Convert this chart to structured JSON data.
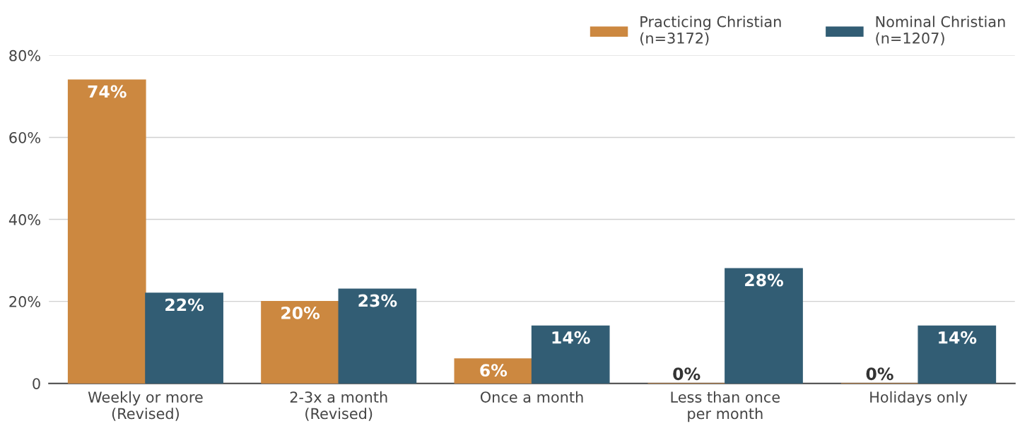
{
  "chart_data": {
    "type": "bar",
    "categories": [
      "Weekly or more\n(Revised)",
      "2-3x a month\n(Revised)",
      "Once a month",
      "Less than once\nper month",
      "Holidays only"
    ],
    "series": [
      {
        "name": "Practicing Christian\n(n=3172)",
        "color": "#cc8840",
        "values": [
          74,
          20,
          6,
          0,
          0
        ],
        "value_labels": [
          "74%",
          "20%",
          "6%",
          "0%",
          "0%"
        ]
      },
      {
        "name": "Nominal Christian\n(n=1207)",
        "color": "#325d74",
        "values": [
          22,
          23,
          14,
          28,
          14
        ],
        "value_labels": [
          "22%",
          "23%",
          "14%",
          "28%",
          "14%"
        ]
      }
    ],
    "ylim": [
      0,
      80
    ],
    "yticks": [
      {
        "value": 0,
        "label": "0"
      },
      {
        "value": 20,
        "label": "20%"
      },
      {
        "value": 40,
        "label": "40%"
      },
      {
        "value": 60,
        "label": "60%"
      },
      {
        "value": 80,
        "label": "80%"
      }
    ],
    "grid": "y",
    "legend": "top right"
  }
}
